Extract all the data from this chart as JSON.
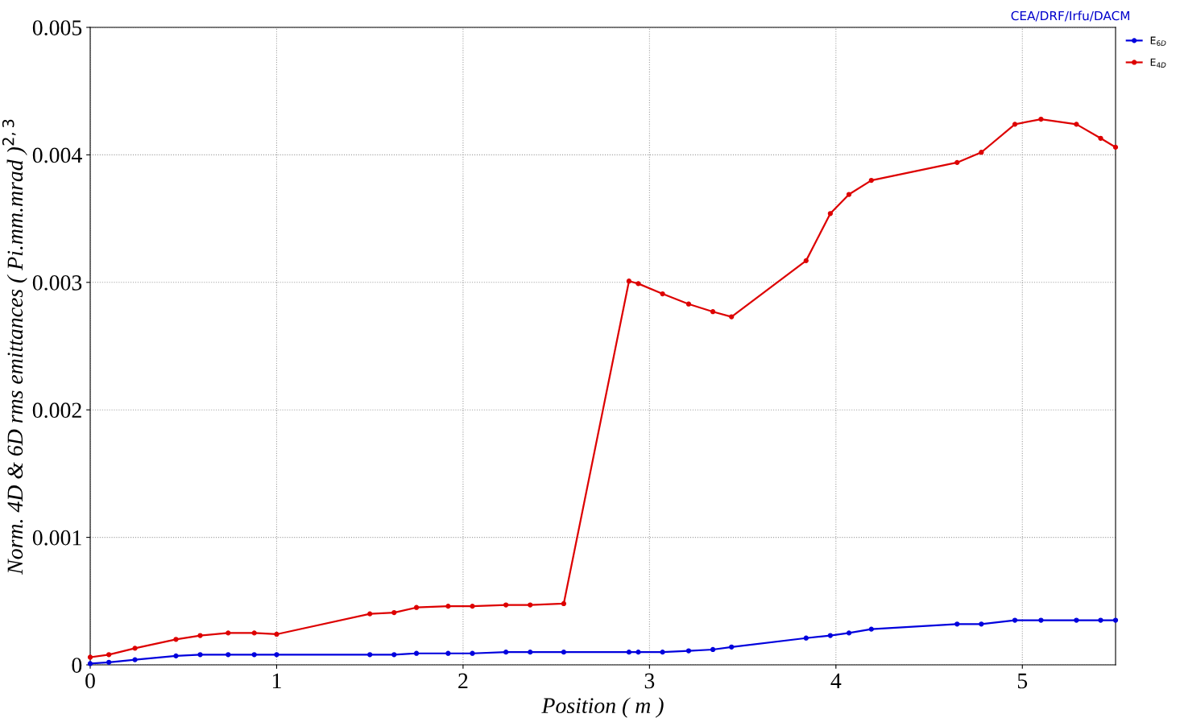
{
  "chart_data": {
    "type": "line",
    "xlabel": "Position ( m )",
    "ylabel": "Norm. 4D & 6D rms emittances ( Pi.mm.mrad )$^{2,3}$",
    "annotations": [
      "CEA/DRF/Irfu/DACM"
    ],
    "x": [
      0,
      0.1,
      0.24,
      0.46,
      0.59,
      0.74,
      0.88,
      1.0,
      1.5,
      1.63,
      1.75,
      1.92,
      2.05,
      2.23,
      2.36,
      2.54,
      2.89,
      2.94,
      3.07,
      3.21,
      3.34,
      3.44,
      3.84,
      3.97,
      4.07,
      4.19,
      4.65,
      4.78,
      4.96,
      5.1,
      5.29,
      5.42,
      5.5
    ],
    "series": [
      {
        "name": "E$_{6D}$",
        "color": "#0000dd",
        "values": [
          1e-05,
          2e-05,
          4e-05,
          7e-05,
          8e-05,
          8e-05,
          8e-05,
          8e-05,
          8e-05,
          8e-05,
          9e-05,
          9e-05,
          9e-05,
          0.0001,
          0.0001,
          0.0001,
          0.0001,
          0.0001,
          0.0001,
          0.00011,
          0.00012,
          0.00014,
          0.00021,
          0.00023,
          0.00025,
          0.00028,
          0.00032,
          0.00032,
          0.00035,
          0.00035,
          0.00035,
          0.00035,
          0.00035
        ]
      },
      {
        "name": "E$_{4D}$",
        "color": "#dd0000",
        "values": [
          6e-05,
          8e-05,
          0.00013,
          0.0002,
          0.00023,
          0.00025,
          0.00025,
          0.00024,
          0.0004,
          0.00041,
          0.00045,
          0.00046,
          0.00046,
          0.00047,
          0.00047,
          0.00048,
          0.00301,
          0.00299,
          0.00291,
          0.00283,
          0.00277,
          0.00273,
          0.00317,
          0.00354,
          0.00369,
          0.0038,
          0.00394,
          0.00402,
          0.00424,
          0.00428,
          0.00424,
          0.00413,
          0.00406
        ]
      }
    ],
    "xlim": [
      0,
      5.5
    ],
    "xticks": [
      0,
      1,
      2,
      3,
      4,
      5
    ],
    "ylim": [
      0,
      0.005
    ],
    "yticks": [
      {
        "value": 0,
        "label": "0"
      },
      0.001,
      0.002,
      0.003,
      0.004,
      0.005
    ],
    "grid": true,
    "legend": "top right",
    "marker": "circle",
    "line_style": "solid"
  }
}
